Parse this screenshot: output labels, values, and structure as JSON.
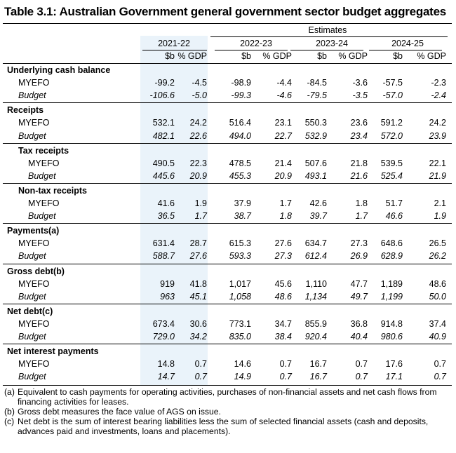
{
  "title": "Table 3.1: Australian Government general government sector budget aggregates",
  "estimates_label": "Estimates",
  "years": [
    "2021-22",
    "2022-23",
    "2023-24",
    "2024-25"
  ],
  "units": [
    "$b",
    "% GDP"
  ],
  "sections": [
    {
      "heading": "Underlying cash balance",
      "rows": [
        {
          "label": "MYEFO",
          "italic": false,
          "values": [
            "-99.2",
            "-4.5",
            "-98.9",
            "-4.4",
            "-84.5",
            "-3.6",
            "-57.5",
            "-2.3"
          ]
        },
        {
          "label": "Budget",
          "italic": true,
          "values": [
            "-106.6",
            "-5.0",
            "-99.3",
            "-4.6",
            "-79.5",
            "-3.5",
            "-57.0",
            "-2.4"
          ]
        }
      ]
    },
    {
      "heading": "Receipts",
      "rows": [
        {
          "label": "MYEFO",
          "italic": false,
          "values": [
            "532.1",
            "24.2",
            "516.4",
            "23.1",
            "550.3",
            "23.6",
            "591.2",
            "24.2"
          ]
        },
        {
          "label": "Budget",
          "italic": true,
          "values": [
            "482.1",
            "22.6",
            "494.0",
            "22.7",
            "532.9",
            "23.4",
            "572.0",
            "23.9"
          ]
        }
      ]
    },
    {
      "heading": "Tax receipts",
      "sub": true,
      "rows": [
        {
          "label": "MYEFO",
          "italic": false,
          "values": [
            "490.5",
            "22.3",
            "478.5",
            "21.4",
            "507.6",
            "21.8",
            "539.5",
            "22.1"
          ]
        },
        {
          "label": "Budget",
          "italic": true,
          "values": [
            "445.6",
            "20.9",
            "455.3",
            "20.9",
            "493.1",
            "21.6",
            "525.4",
            "21.9"
          ]
        }
      ]
    },
    {
      "heading": "Non-tax receipts",
      "sub": true,
      "rows": [
        {
          "label": "MYEFO",
          "italic": false,
          "values": [
            "41.6",
            "1.9",
            "37.9",
            "1.7",
            "42.6",
            "1.8",
            "51.7",
            "2.1"
          ]
        },
        {
          "label": "Budget",
          "italic": true,
          "values": [
            "36.5",
            "1.7",
            "38.7",
            "1.8",
            "39.7",
            "1.7",
            "46.6",
            "1.9"
          ]
        }
      ]
    },
    {
      "heading": "Payments(a)",
      "rows": [
        {
          "label": "MYEFO",
          "italic": false,
          "values": [
            "631.4",
            "28.7",
            "615.3",
            "27.6",
            "634.7",
            "27.3",
            "648.6",
            "26.5"
          ]
        },
        {
          "label": "Budget",
          "italic": true,
          "values": [
            "588.7",
            "27.6",
            "593.3",
            "27.3",
            "612.4",
            "26.9",
            "628.9",
            "26.2"
          ]
        }
      ]
    },
    {
      "heading": "Gross debt(b)",
      "rows": [
        {
          "label": "MYEFO",
          "italic": false,
          "values": [
            "919",
            "41.8",
            "1,017",
            "45.6",
            "1,110",
            "47.7",
            "1,189",
            "48.6"
          ]
        },
        {
          "label": "Budget",
          "italic": true,
          "values": [
            "963",
            "45.1",
            "1,058",
            "48.6",
            "1,134",
            "49.7",
            "1,199",
            "50.0"
          ]
        }
      ]
    },
    {
      "heading": "Net debt(c)",
      "rows": [
        {
          "label": "MYEFO",
          "italic": false,
          "values": [
            "673.4",
            "30.6",
            "773.1",
            "34.7",
            "855.9",
            "36.8",
            "914.8",
            "37.4"
          ]
        },
        {
          "label": "Budget",
          "italic": true,
          "values": [
            "729.0",
            "34.2",
            "835.0",
            "38.4",
            "920.4",
            "40.4",
            "980.6",
            "40.9"
          ]
        }
      ]
    },
    {
      "heading": "Net interest payments",
      "rows": [
        {
          "label": "MYEFO",
          "italic": false,
          "values": [
            "14.8",
            "0.7",
            "14.6",
            "0.7",
            "16.7",
            "0.7",
            "17.6",
            "0.7"
          ]
        },
        {
          "label": "Budget",
          "italic": true,
          "values": [
            "14.7",
            "0.7",
            "14.9",
            "0.7",
            "16.7",
            "0.7",
            "17.1",
            "0.7"
          ]
        }
      ]
    }
  ],
  "footnotes": [
    {
      "label": "(a)",
      "text": "Equivalent to cash payments for operating activities, purchases of non-financial assets and net cash flows from financing activities for leases."
    },
    {
      "label": "(b)",
      "text": "Gross debt measures the face value of AGS on issue."
    },
    {
      "label": "(c)",
      "text": "Net debt is the sum of interest bearing liabilities less the sum of selected financial assets (cash and deposits, advances paid and investments, loans and placements)."
    }
  ]
}
